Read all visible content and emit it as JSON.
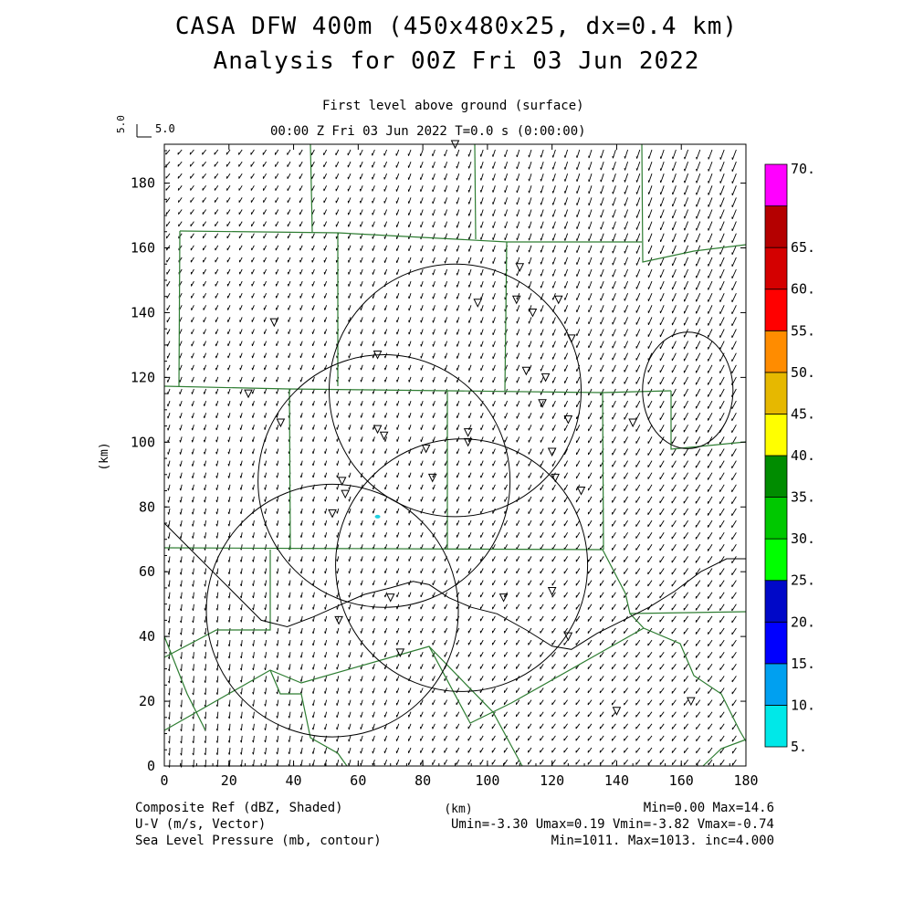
{
  "header": {
    "title_line1": "CASA DFW 400m (450x480x25, dx=0.4 km)",
    "title_line2": "Analysis for 00Z Fri 03 Jun 2022",
    "level_label": "First level above ground (surface)",
    "time_label": "00:00 Z Fri 03 Jun 2022   T=0.0 s (0:00:00)",
    "ref_vector_left": "5.0",
    "ref_vector_right": "5.0"
  },
  "footer": {
    "field1": "Composite Ref (dBZ, Shaded)",
    "field2": "U-V (m/s, Vector)",
    "field3": "Sea Level Pressure (mb, contour)",
    "stats1": "Min=0.00 Max=14.6",
    "stats2": "Umin=-3.30 Umax=0.19 Vmin=-3.82 Vmax=-0.74",
    "stats3": "Min=1011. Max=1013. inc=4.000"
  },
  "colors": {
    "county_lines": "#2e7d32",
    "contours": "#000000",
    "echo": "#20d0e0"
  },
  "chart_data": {
    "type": "map",
    "xlabel": "(km)",
    "ylabel": "(km)",
    "xlim": [
      0,
      180
    ],
    "ylim": [
      0,
      192
    ],
    "xticks": [
      0,
      20,
      40,
      60,
      80,
      100,
      120,
      140,
      160,
      180
    ],
    "yticks": [
      0,
      20,
      40,
      60,
      80,
      100,
      120,
      140,
      160,
      180
    ],
    "colorbar": {
      "label_values": [
        "5.",
        "10.",
        "15.",
        "20.",
        "25.",
        "30.",
        "35.",
        "40.",
        "45.",
        "50.",
        "55.",
        "60.",
        "65.",
        "70."
      ],
      "colors": [
        "#00e8e8",
        "#00a0f0",
        "#0000ff",
        "#0008c8",
        "#00ff00",
        "#00c800",
        "#008c00",
        "#ffff00",
        "#e6b800",
        "#ff8c00",
        "#ff0000",
        "#d40000",
        "#b40000",
        "#ff00ff"
      ]
    },
    "wind_field": {
      "u_range": [
        -3.3,
        0.19
      ],
      "v_range": [
        -3.82,
        -0.74
      ]
    },
    "radar_circles": [
      {
        "center": [
          90,
          116
        ],
        "radius": 39
      },
      {
        "center": [
          68,
          88
        ],
        "radius": 39
      },
      {
        "center": [
          92,
          62
        ],
        "radius": 39
      },
      {
        "center": [
          52,
          48
        ],
        "radius": 39
      }
    ],
    "pressure_contour_lines": [
      [
        [
          0,
          75
        ],
        [
          10,
          65
        ],
        [
          20,
          55
        ],
        [
          30,
          45
        ],
        [
          38,
          43
        ],
        [
          46,
          46
        ],
        [
          55,
          50
        ],
        [
          62,
          53
        ],
        [
          70,
          55
        ],
        [
          77,
          57
        ],
        [
          82,
          56
        ],
        [
          88,
          52
        ],
        [
          95,
          49
        ],
        [
          103,
          47
        ],
        [
          112,
          42
        ],
        [
          120,
          37
        ],
        [
          126,
          36
        ],
        [
          134,
          41
        ],
        [
          142,
          45
        ],
        [
          150,
          49
        ],
        [
          158,
          54
        ],
        [
          166,
          60
        ],
        [
          174,
          64
        ],
        [
          180,
          64
        ]
      ]
    ],
    "pressure_contour_loop": {
      "center": [
        162,
        116
      ],
      "rx": 14,
      "ry": 18
    },
    "stations": [
      [
        90,
        192
      ],
      [
        110,
        154
      ],
      [
        97,
        143
      ],
      [
        109,
        144
      ],
      [
        114,
        140
      ],
      [
        122,
        144
      ],
      [
        126,
        132
      ],
      [
        34,
        137
      ],
      [
        66,
        127
      ],
      [
        112,
        122
      ],
      [
        118,
        120
      ],
      [
        26,
        115
      ],
      [
        36,
        106
      ],
      [
        66,
        104
      ],
      [
        68,
        102
      ],
      [
        117,
        112
      ],
      [
        125,
        107
      ],
      [
        145,
        106
      ],
      [
        94,
        103
      ],
      [
        94,
        100
      ],
      [
        81,
        98
      ],
      [
        120,
        97
      ],
      [
        83,
        89
      ],
      [
        121,
        89
      ],
      [
        129,
        85
      ],
      [
        55,
        88
      ],
      [
        56,
        84
      ],
      [
        52,
        78
      ],
      [
        70,
        52
      ],
      [
        105,
        52
      ],
      [
        120,
        54
      ],
      [
        54,
        45
      ],
      [
        125,
        40
      ],
      [
        73,
        35
      ],
      [
        140,
        17
      ],
      [
        163,
        20
      ]
    ],
    "echo_point": [
      66,
      77
    ]
  }
}
